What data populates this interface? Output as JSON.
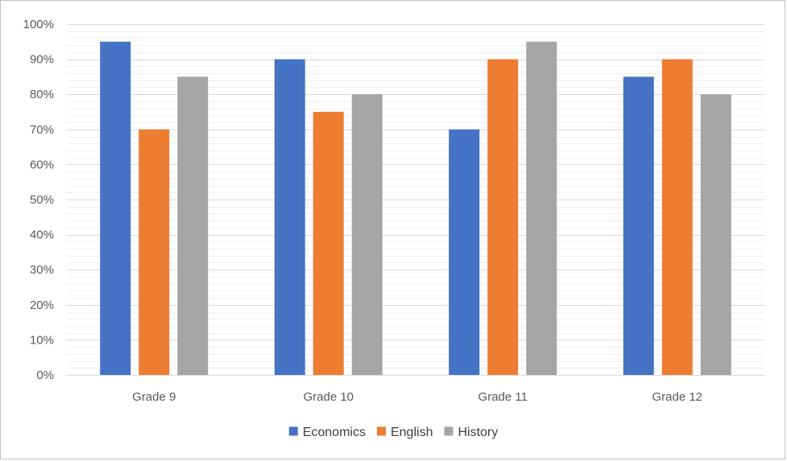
{
  "chart_data": {
    "type": "bar",
    "title": "",
    "xlabel": "",
    "ylabel": "",
    "categories": [
      "Grade 9",
      "Grade 10",
      "Grade 11",
      "Grade 12"
    ],
    "series": [
      {
        "name": "Economics",
        "color": "#4472c4",
        "values": [
          95,
          90,
          70,
          85
        ]
      },
      {
        "name": "English",
        "color": "#ed7d31",
        "values": [
          70,
          75,
          90,
          90
        ]
      },
      {
        "name": "History",
        "color": "#a5a5a5",
        "values": [
          85,
          80,
          95,
          80
        ]
      }
    ],
    "ylim": [
      0,
      100
    ],
    "ytick_step": 10,
    "ytick_labels": [
      "0%",
      "10%",
      "20%",
      "30%",
      "40%",
      "50%",
      "60%",
      "70%",
      "80%",
      "90%",
      "100%"
    ],
    "grid": true,
    "legend": "bottom-center"
  }
}
